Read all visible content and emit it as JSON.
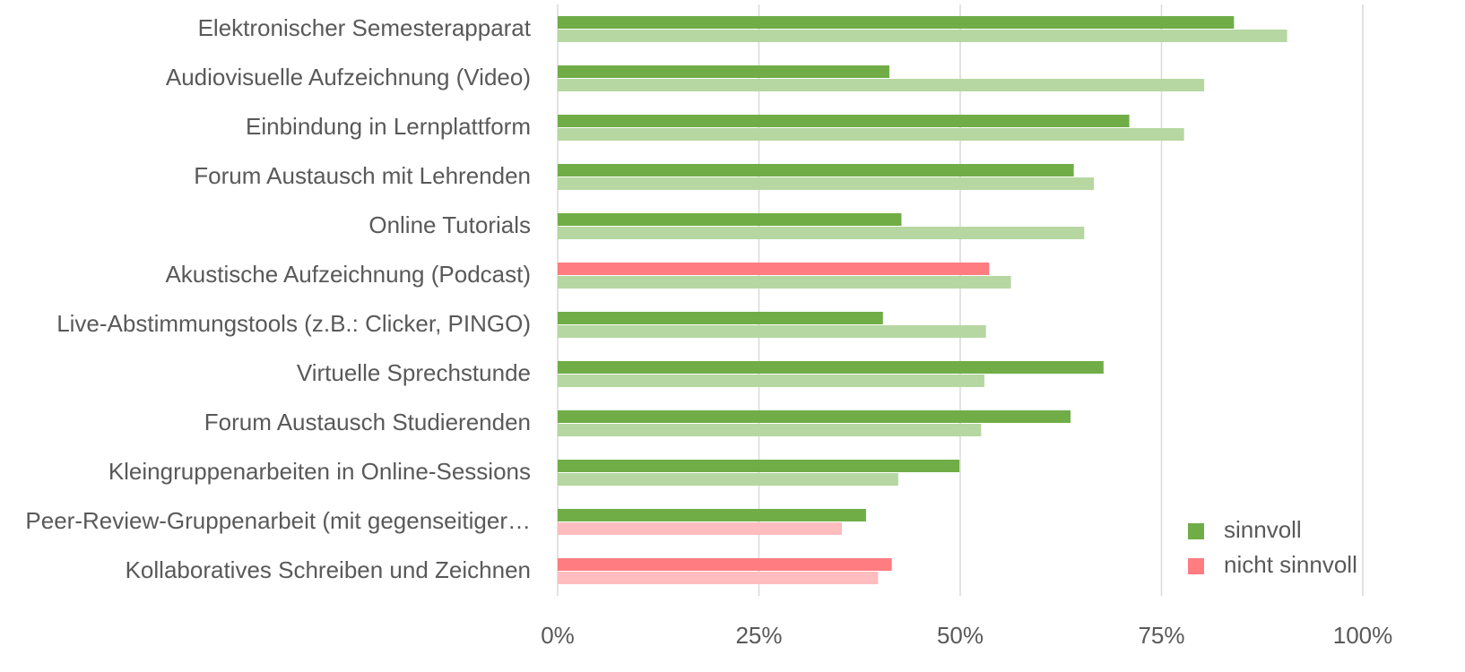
{
  "chart_data": {
    "type": "bar",
    "orientation": "horizontal",
    "categories": [
      "Elektronischer Semesterapparat",
      "Audiovisuelle Aufzeichnung (Video)",
      "Einbindung in Lernplattform",
      "Forum Austausch mit Lehrenden",
      "Online Tutorials",
      "Akustische Aufzeichnung (Podcast)",
      "Live-Abstimmungstools (z.B.: Clicker, PINGO)",
      "Virtuelle Sprechstunde",
      "Forum Austausch Studierenden",
      "Kleingruppenarbeiten in Online-Sessions",
      "Peer-Review-Gruppenarbeit (mit gegenseitiger…",
      "Kollaboratives Schreiben und Zeichnen"
    ],
    "series": [
      {
        "values": [
          84.0,
          41.2,
          71.0,
          64.1,
          42.7,
          53.6,
          40.4,
          67.8,
          63.7,
          49.9,
          38.3,
          41.5
        ],
        "colors": [
          "#70ad47",
          "#70ad47",
          "#70ad47",
          "#70ad47",
          "#70ad47",
          "#ff7c80",
          "#70ad47",
          "#70ad47",
          "#70ad47",
          "#70ad47",
          "#70ad47",
          "#ff7c80"
        ]
      },
      {
        "values": [
          90.6,
          80.3,
          77.8,
          66.6,
          65.4,
          56.3,
          53.2,
          53.0,
          52.6,
          42.3,
          35.3,
          39.8
        ],
        "colors": [
          "#b6d7a1",
          "#b6d7a1",
          "#b6d7a1",
          "#b6d7a1",
          "#b6d7a1",
          "#b6d7a1",
          "#b6d7a1",
          "#b6d7a1",
          "#b6d7a1",
          "#b6d7a1",
          "#ffbdbf",
          "#ffbdbf"
        ]
      }
    ],
    "legend": [
      {
        "name": "sinnvoll",
        "color": "#70ad47"
      },
      {
        "name": "nicht sinnvoll",
        "color": "#ff7c80"
      }
    ],
    "legend_position": "lower right",
    "xlim": [
      0,
      100
    ],
    "xticks": [
      {
        "value": 0,
        "label": "0%"
      },
      {
        "value": 25,
        "label": "25%"
      },
      {
        "value": 50,
        "label": "50%"
      },
      {
        "value": 75,
        "label": "75%"
      },
      {
        "value": 100,
        "label": "100%"
      }
    ],
    "grid": true
  }
}
